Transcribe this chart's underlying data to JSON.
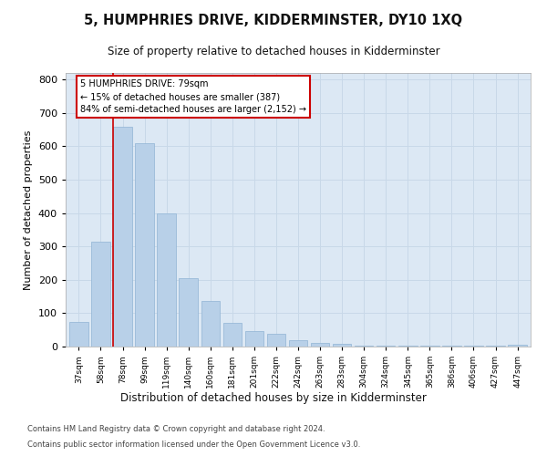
{
  "title": "5, HUMPHRIES DRIVE, KIDDERMINSTER, DY10 1XQ",
  "subtitle": "Size of property relative to detached houses in Kidderminster",
  "xlabel": "Distribution of detached houses by size in Kidderminster",
  "ylabel": "Number of detached properties",
  "categories": [
    "37sqm",
    "58sqm",
    "78sqm",
    "99sqm",
    "119sqm",
    "140sqm",
    "160sqm",
    "181sqm",
    "201sqm",
    "222sqm",
    "242sqm",
    "263sqm",
    "283sqm",
    "304sqm",
    "324sqm",
    "345sqm",
    "365sqm",
    "386sqm",
    "406sqm",
    "427sqm",
    "447sqm"
  ],
  "values": [
    75,
    315,
    660,
    610,
    400,
    205,
    138,
    70,
    47,
    37,
    20,
    10,
    8,
    3,
    2,
    2,
    2,
    2,
    2,
    2,
    5
  ],
  "bar_color": "#b8d0e8",
  "bar_edge_color": "#90b4d4",
  "vline_x_index": 2,
  "vline_color": "#cc0000",
  "annotation_text": "5 HUMPHRIES DRIVE: 79sqm\n← 15% of detached houses are smaller (387)\n84% of semi-detached houses are larger (2,152) →",
  "annotation_box_facecolor": "#ffffff",
  "annotation_box_edgecolor": "#cc0000",
  "grid_color": "#c8d8e8",
  "plot_bg_color": "#dce8f4",
  "ylim": [
    0,
    820
  ],
  "yticks": [
    0,
    100,
    200,
    300,
    400,
    500,
    600,
    700,
    800
  ],
  "footer1": "Contains HM Land Registry data © Crown copyright and database right 2024.",
  "footer2": "Contains public sector information licensed under the Open Government Licence v3.0."
}
